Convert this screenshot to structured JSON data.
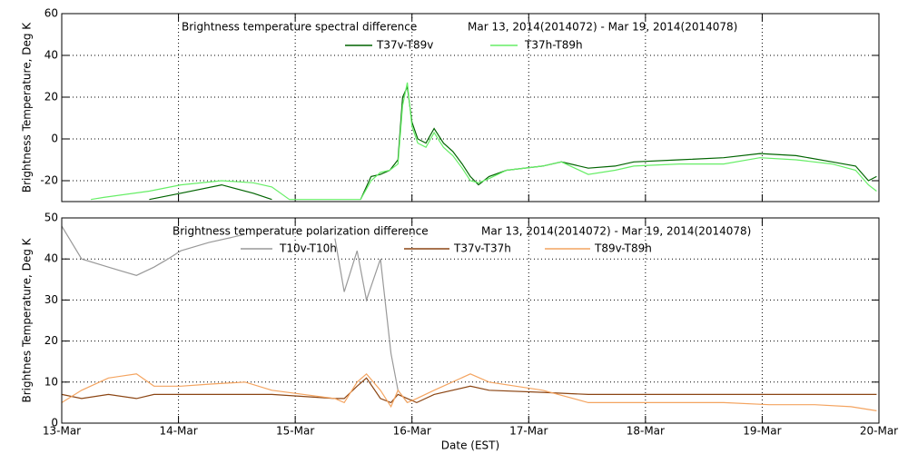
{
  "chart_data": [
    {
      "type": "line",
      "title": "Brightness temperature spectral difference",
      "date_range": "Mar 13, 2014(2014072) - Mar 19, 2014(2014078)",
      "y_label": "Brightness Temperature, Deg K",
      "xlim": [
        72,
        79
      ],
      "xticks": [
        72,
        73,
        74,
        75,
        76,
        77,
        78,
        79
      ],
      "ylim": [
        -30,
        60
      ],
      "yticks": [
        -20,
        0,
        20,
        40,
        60
      ],
      "grid": true,
      "x": [
        72.25,
        72.36,
        72.75,
        73.02,
        73.37,
        73.64,
        73.8,
        73.95,
        74.56,
        74.65,
        74.73,
        74.81,
        74.88,
        74.92,
        74.96,
        75.0,
        75.05,
        75.12,
        75.19,
        75.27,
        75.35,
        75.43,
        75.5,
        75.57,
        75.66,
        75.81,
        76.12,
        76.28,
        76.51,
        76.74,
        76.9,
        77.29,
        77.67,
        77.98,
        78.29,
        78.6,
        78.8,
        78.91,
        78.98
      ],
      "series": [
        {
          "name": "T37v-T89v",
          "color": "#006400",
          "values": [
            null,
            null,
            -29,
            -26,
            -22,
            -26,
            -29,
            null,
            -29,
            -18,
            -17,
            -15,
            -10,
            20,
            25,
            8,
            0,
            -2,
            5,
            -2,
            -6,
            -12,
            -18,
            -22,
            -18,
            -15,
            -13,
            -11,
            -14,
            -13,
            -11,
            -10,
            -9,
            -7,
            -8,
            -11,
            -13,
            -20,
            -18
          ]
        },
        {
          "name": "T37h-T89h",
          "color": "#66ee66",
          "values": [
            -29,
            -28,
            -25,
            -22,
            -20,
            -21,
            -23,
            -29,
            -29,
            -20,
            -16,
            -15,
            -12,
            16,
            27,
            6,
            -2,
            -4,
            3,
            -4,
            -8,
            -14,
            -20,
            -21,
            -19,
            -15,
            -13,
            -11,
            -17,
            -15,
            -13,
            -12,
            -12,
            -9,
            -10,
            -12,
            -15,
            -22,
            -25
          ]
        }
      ]
    },
    {
      "type": "line",
      "title": "Brightness temperature polarization difference",
      "date_range": "Mar 13, 2014(2014072) - Mar 19, 2014(2014078)",
      "y_label": "Brightnes Temperature, Deg K",
      "x_label": "Date (EST)",
      "xlim": [
        72,
        79
      ],
      "xticks": [
        {
          "value": 72,
          "label": "13-Mar"
        },
        {
          "value": 73,
          "label": "14-Mar"
        },
        {
          "value": 74,
          "label": "15-Mar"
        },
        {
          "value": 75,
          "label": "16-Mar"
        },
        {
          "value": 76,
          "label": "17-Mar"
        },
        {
          "value": 77,
          "label": "18-Mar"
        },
        {
          "value": 78,
          "label": "19-Mar"
        },
        {
          "value": 79,
          "label": "20-Mar"
        }
      ],
      "ylim": [
        0,
        50
      ],
      "yticks": [
        0,
        10,
        20,
        30,
        40,
        50
      ],
      "grid": true,
      "x": [
        72.0,
        72.17,
        72.4,
        72.64,
        72.79,
        72.91,
        73.02,
        73.26,
        73.57,
        73.8,
        74.34,
        74.42,
        74.53,
        74.61,
        74.73,
        74.82,
        74.88,
        74.96,
        75.04,
        75.19,
        75.5,
        75.66,
        76.12,
        76.51,
        76.9,
        77.29,
        77.67,
        78.06,
        78.45,
        78.76,
        78.98
      ],
      "series": [
        {
          "name": "T10v-T10h",
          "color": "#999999",
          "values": [
            48,
            40,
            38,
            36,
            38,
            40,
            42,
            44,
            46,
            null,
            45,
            32,
            42,
            30,
            40,
            17,
            8,
            5,
            null,
            null,
            null,
            null,
            null,
            null,
            null,
            null,
            null,
            null,
            null,
            null,
            null
          ]
        },
        {
          "name": "T37v-T37h",
          "color": "#8b4513",
          "values": [
            7,
            6,
            7,
            6,
            7,
            7,
            7,
            7,
            7,
            7,
            6,
            6,
            9,
            11,
            6,
            5,
            7,
            6,
            5,
            7,
            9,
            8,
            7.5,
            7,
            7,
            7,
            7,
            7,
            7,
            7,
            7
          ]
        },
        {
          "name": "T89v-T89h",
          "color": "#f4a460",
          "values": [
            5,
            8,
            11,
            12,
            9,
            9,
            9,
            9.5,
            10,
            8,
            6,
            5,
            10,
            12,
            8,
            4,
            8,
            5,
            6,
            8,
            12,
            10,
            8,
            5,
            5,
            5,
            5,
            4.5,
            4.5,
            4,
            3
          ]
        }
      ]
    }
  ]
}
